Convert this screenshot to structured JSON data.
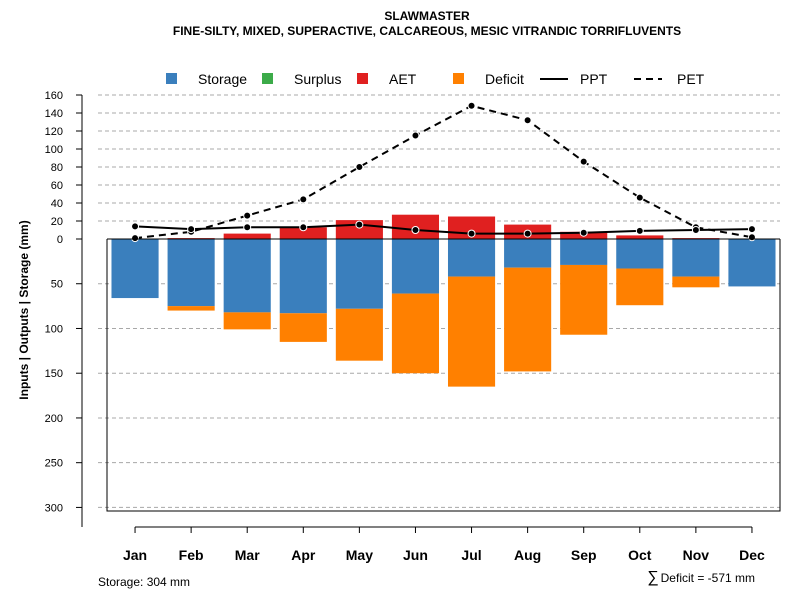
{
  "chart_data": {
    "type": "bar",
    "title": "SLAWMASTER",
    "subtitle": "FINE-SILTY, MIXED, SUPERACTIVE, CALCAREOUS, MESIC VITRANDIC TORRIFLUVENTS",
    "ylabel": "Inputs | Outputs | Storage    (mm)",
    "categories": [
      "Jan",
      "Feb",
      "Mar",
      "Apr",
      "May",
      "Jun",
      "Jul",
      "Aug",
      "Sep",
      "Oct",
      "Nov",
      "Dec"
    ],
    "upper_axis": {
      "ylim": [
        0,
        160
      ],
      "ticks": [
        "160",
        "140",
        "120",
        "100",
        "80",
        "60",
        "40",
        "20",
        "0"
      ]
    },
    "lower_axis": {
      "ylim": [
        0,
        304
      ],
      "ticks": [
        "50",
        "100",
        "150",
        "200",
        "250",
        "300"
      ]
    },
    "series": [
      {
        "name": "Storage",
        "color": "#3a7fbd",
        "values": [
          66,
          75,
          82,
          83,
          78,
          61,
          42,
          32,
          29,
          33,
          42,
          53
        ]
      },
      {
        "name": "Surplus",
        "color": "#3cab49",
        "values": [
          0,
          0,
          0,
          0,
          0,
          0,
          0,
          0,
          0,
          0,
          0,
          0
        ]
      },
      {
        "name": "AET",
        "color": "#e02020",
        "values": [
          0,
          1,
          6,
          13,
          21,
          27,
          25,
          16,
          8,
          4,
          1,
          0
        ]
      },
      {
        "name": "Deficit",
        "color": "#ff8000",
        "values": [
          0,
          5,
          19,
          32,
          58,
          89,
          123,
          116,
          78,
          41,
          12,
          0
        ]
      },
      {
        "name": "PPT",
        "color": "#000000",
        "values": [
          14,
          11,
          13,
          13,
          16,
          10,
          6,
          6,
          7,
          9,
          10,
          11
        ]
      },
      {
        "name": "PET",
        "color": "#000000",
        "values": [
          1,
          8,
          26,
          44,
          80,
          115,
          148,
          132,
          86,
          46,
          13,
          2
        ]
      }
    ],
    "legend": [
      "Storage",
      "Surplus",
      "AET",
      "Deficit",
      "PPT",
      "PET"
    ],
    "legend_position": "top",
    "grid": true
  },
  "footer": {
    "storage_label": "Storage: 304 mm",
    "deficit_symbol": "∑",
    "deficit_label": "Deficit = -571 mm"
  }
}
